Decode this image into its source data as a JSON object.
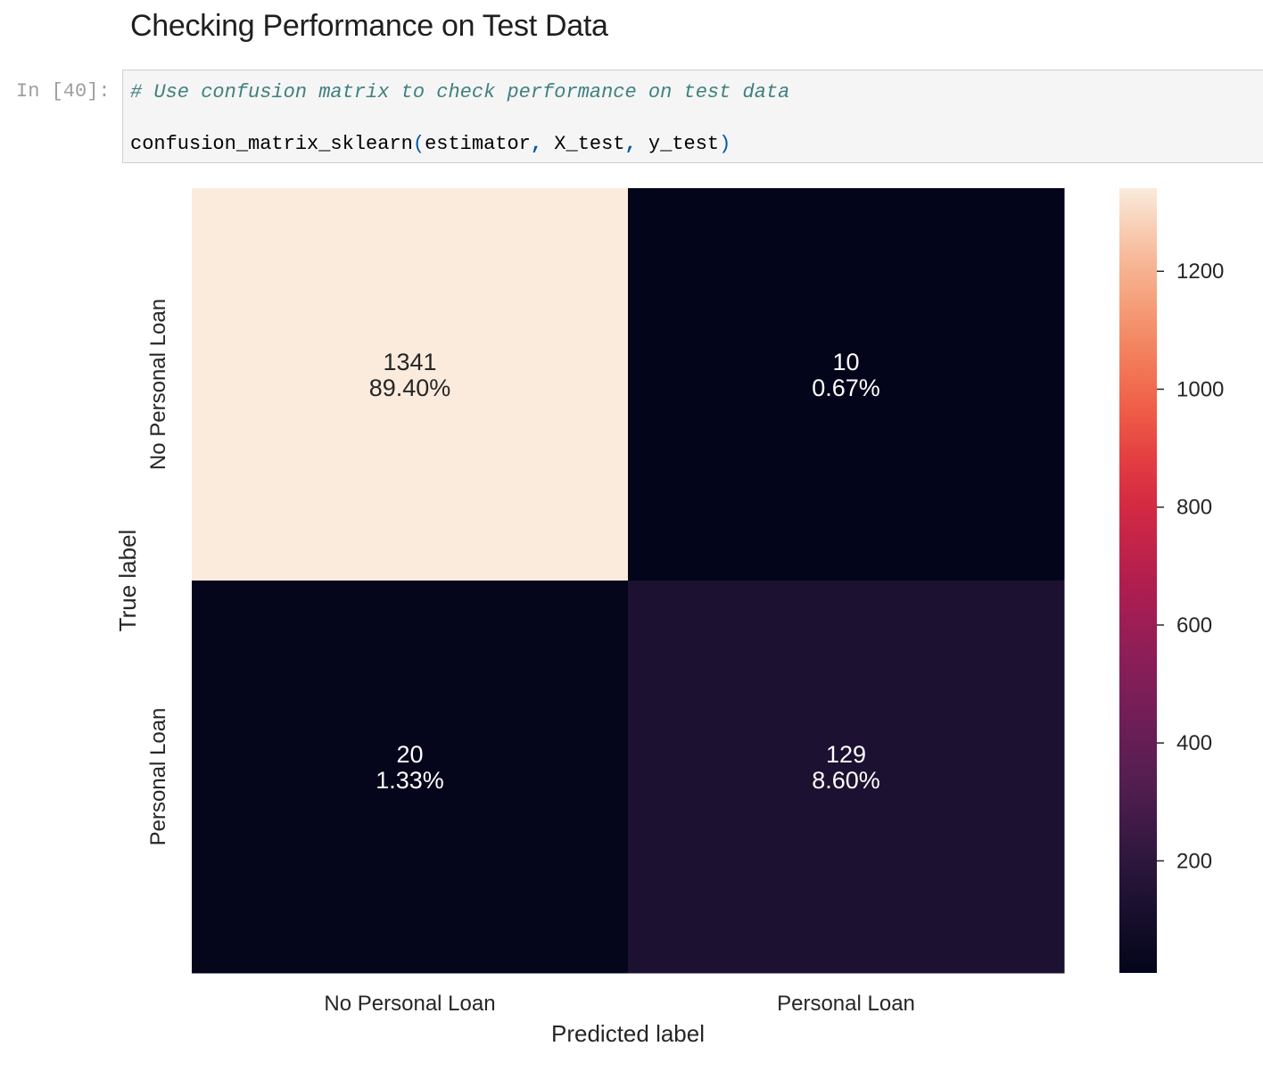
{
  "notebook": {
    "heading": "Checking Performance on Test Data",
    "cell_prompt": "In [40]:",
    "code_comment": "# Use confusion matrix to check performance on test data",
    "code_function": "confusion_matrix_sklearn",
    "code_args": [
      "estimator",
      "X_test",
      "y_test"
    ]
  },
  "chart_data": {
    "type": "heatmap",
    "xlabel": "Predicted label",
    "ylabel": "True label",
    "x_categories": [
      "No Personal Loan",
      "Personal Loan"
    ],
    "y_categories": [
      "No Personal Loan",
      "Personal Loan"
    ],
    "values": [
      [
        1341,
        10
      ],
      [
        20,
        129
      ]
    ],
    "annotations": [
      [
        "1341\n89.40%",
        "10\n0.67%"
      ],
      [
        "20\n1.33%",
        "129\n8.60%"
      ]
    ],
    "colormap": "rocket",
    "colorbar": {
      "ticks": [
        200,
        400,
        600,
        800,
        1000,
        1200
      ],
      "range": [
        10,
        1341
      ]
    },
    "grid": false
  }
}
